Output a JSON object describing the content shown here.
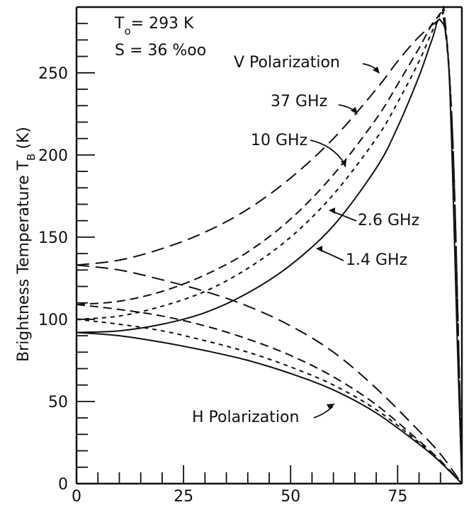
{
  "chart_data": {
    "type": "line",
    "title": "",
    "xlabel": "",
    "ylabel": "Brightness Temperature T",
    "ylabel_subscript": "B",
    "ylabel_unit": "(K)",
    "xlim": [
      0,
      90
    ],
    "ylim": [
      0,
      290
    ],
    "x_ticks": [
      0,
      25,
      50,
      75
    ],
    "y_ticks": [
      0,
      50,
      100,
      150,
      200,
      250
    ],
    "grid": false,
    "conditions": {
      "temperature": {
        "symbol": "T",
        "sub": "o",
        "text": "= 293 K"
      },
      "salinity": "S = 36 %oo"
    },
    "annotations": {
      "v_polarization": "V Polarization",
      "h_polarization": "H Polarization",
      "f37": "37 GHz",
      "f10": "10 GHz",
      "f26": "2.6 GHz",
      "f14": "1.4 GHz"
    },
    "series": [
      {
        "name": "37 GHz",
        "polarization": "V",
        "x": [
          0,
          10,
          20,
          30,
          40,
          50,
          60,
          70,
          75,
          80,
          85,
          86,
          88,
          90
        ],
        "y": [
          133,
          136,
          143,
          153,
          167,
          186,
          210,
          240,
          257,
          272,
          283,
          284,
          200,
          0
        ]
      },
      {
        "name": "37 GHz",
        "polarization": "H",
        "x": [
          0,
          10,
          20,
          30,
          40,
          50,
          60,
          70,
          80,
          85,
          90
        ],
        "y": [
          133,
          130,
          124,
          117,
          108,
          96,
          80,
          58,
          32,
          18,
          0
        ]
      },
      {
        "name": "10 GHz",
        "polarization": "V",
        "x": [
          0,
          10,
          20,
          30,
          40,
          50,
          60,
          70,
          75,
          80,
          84,
          86,
          88,
          90
        ],
        "y": [
          109,
          111,
          117,
          127,
          141,
          161,
          188,
          222,
          243,
          265,
          283,
          278,
          200,
          0
        ]
      },
      {
        "name": "10 GHz",
        "polarization": "H",
        "x": [
          0,
          10,
          20,
          30,
          40,
          50,
          60,
          70,
          80,
          85,
          90
        ],
        "y": [
          109,
          106,
          102,
          96,
          88,
          78,
          65,
          48,
          26,
          14,
          0
        ]
      },
      {
        "name": "2.6 GHz",
        "polarization": "V",
        "x": [
          0,
          10,
          20,
          30,
          40,
          50,
          60,
          70,
          75,
          80,
          84,
          86,
          88,
          90
        ],
        "y": [
          100,
          102,
          108,
          117,
          131,
          150,
          176,
          210,
          232,
          257,
          280,
          282,
          200,
          0
        ]
      },
      {
        "name": "2.6 GHz",
        "polarization": "H",
        "x": [
          0,
          10,
          20,
          30,
          40,
          50,
          60,
          70,
          80,
          85,
          90
        ],
        "y": [
          100,
          97,
          93,
          87,
          80,
          71,
          60,
          45,
          25,
          13,
          0
        ]
      },
      {
        "name": "1.4 GHz",
        "polarization": "V",
        "x": [
          0,
          10,
          20,
          30,
          40,
          50,
          60,
          70,
          75,
          80,
          83,
          85,
          87,
          89,
          90
        ],
        "y": [
          92,
          93,
          97,
          104,
          116,
          133,
          157,
          192,
          217,
          248,
          270,
          282,
          250,
          80,
          0
        ]
      },
      {
        "name": "1.4 GHz",
        "polarization": "H",
        "x": [
          0,
          10,
          20,
          30,
          40,
          50,
          60,
          70,
          80,
          85,
          90
        ],
        "y": [
          92,
          90,
          86,
          81,
          75,
          67,
          57,
          43,
          24,
          13,
          0
        ]
      }
    ]
  }
}
